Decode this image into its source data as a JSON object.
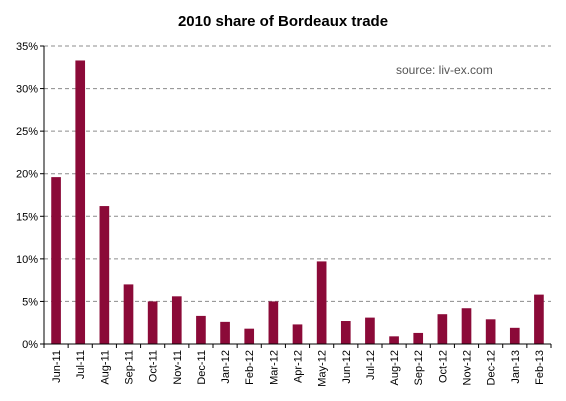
{
  "chart_data": {
    "type": "bar",
    "title": "2010 share of Bordeaux trade",
    "annotation": "source: liv-ex.com",
    "xlabel": "",
    "ylabel": "",
    "categories": [
      "Jun-11",
      "Jul-11",
      "Aug-11",
      "Sep-11",
      "Oct-11",
      "Nov-11",
      "Dec-11",
      "Jan-12",
      "Feb-12",
      "Mar-12",
      "Apr-12",
      "May-12",
      "Jun-12",
      "Jul-12",
      "Aug-12",
      "Sep-12",
      "Oct-12",
      "Nov-12",
      "Dec-12",
      "Jan-13",
      "Feb-13"
    ],
    "values": [
      19.6,
      33.3,
      16.2,
      7.0,
      5.0,
      5.6,
      3.3,
      2.6,
      1.8,
      5.0,
      2.3,
      9.7,
      2.7,
      3.1,
      0.9,
      1.3,
      3.5,
      4.2,
      2.9,
      1.9,
      5.8
    ],
    "y_ticks": [
      0,
      5,
      10,
      15,
      20,
      25,
      30,
      35
    ],
    "y_tick_labels": [
      "0%",
      "5%",
      "10%",
      "15%",
      "20%",
      "25%",
      "30%",
      "35%"
    ],
    "ylim": [
      0,
      35
    ],
    "grid": true,
    "grid_style": "dashed-horizontal",
    "legend": "none",
    "bar_color": "#8B0A38"
  }
}
